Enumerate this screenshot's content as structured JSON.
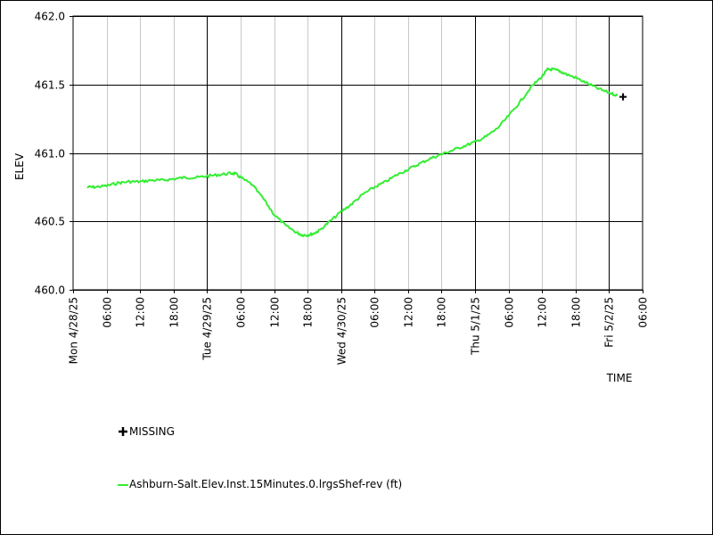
{
  "chart_data": {
    "type": "line",
    "ylabel": "ELEV",
    "xlabel": "TIME",
    "ylim": [
      460.0,
      462.0
    ],
    "y_ticks": [
      "460.0",
      "460.5",
      "461.0",
      "461.5",
      "462.0"
    ],
    "x_range_hours": [
      0,
      102
    ],
    "x_ticks": [
      {
        "hour": 0,
        "label": "Mon 4/28/25",
        "major": true
      },
      {
        "hour": 6,
        "label": "06:00",
        "major": false
      },
      {
        "hour": 12,
        "label": "12:00",
        "major": false
      },
      {
        "hour": 18,
        "label": "18:00",
        "major": false
      },
      {
        "hour": 24,
        "label": "Tue 4/29/25",
        "major": true
      },
      {
        "hour": 30,
        "label": "06:00",
        "major": false
      },
      {
        "hour": 36,
        "label": "12:00",
        "major": false
      },
      {
        "hour": 42,
        "label": "18:00",
        "major": false
      },
      {
        "hour": 48,
        "label": "Wed 4/30/25",
        "major": true
      },
      {
        "hour": 54,
        "label": "06:00",
        "major": false
      },
      {
        "hour": 60,
        "label": "12:00",
        "major": false
      },
      {
        "hour": 66,
        "label": "18:00",
        "major": false
      },
      {
        "hour": 72,
        "label": "Thu 5/1/25",
        "major": true
      },
      {
        "hour": 78,
        "label": "06:00",
        "major": false
      },
      {
        "hour": 84,
        "label": "12:00",
        "major": false
      },
      {
        "hour": 90,
        "label": "18:00",
        "major": false
      },
      {
        "hour": 96,
        "label": "Fri 5/2/25",
        "major": true
      },
      {
        "hour": 102,
        "label": "06:00",
        "major": false
      }
    ],
    "series": [
      {
        "name": "Ashburn-Salt.Elev.Inst.15Minutes.0.lrgsShef-rev (ft)",
        "color": "#33ee33",
        "x_hours": [
          2.5,
          4,
          6,
          8,
          10,
          12,
          14,
          16,
          18,
          20,
          22,
          24,
          26,
          28,
          29,
          30,
          32,
          34,
          36,
          38,
          40,
          41,
          42,
          43,
          44,
          46,
          48,
          50,
          52,
          54,
          56,
          58,
          60,
          62,
          64,
          66,
          68,
          70,
          72,
          74,
          76,
          78,
          80,
          82,
          84,
          85,
          86,
          87,
          88,
          90,
          92,
          94,
          96,
          97.5
        ],
        "y": [
          460.75,
          460.75,
          460.76,
          460.78,
          460.79,
          460.79,
          460.8,
          460.8,
          460.81,
          460.82,
          460.82,
          460.83,
          460.84,
          460.85,
          460.85,
          460.82,
          460.77,
          460.67,
          460.55,
          460.47,
          460.42,
          460.4,
          460.4,
          460.41,
          460.43,
          460.5,
          460.57,
          460.63,
          460.7,
          460.75,
          460.79,
          460.84,
          460.88,
          460.92,
          460.96,
          460.99,
          461.02,
          461.05,
          461.08,
          461.12,
          461.18,
          461.27,
          461.37,
          461.48,
          461.56,
          461.61,
          461.61,
          461.6,
          461.58,
          461.55,
          461.51,
          461.47,
          461.44,
          461.42
        ]
      }
    ],
    "missing_points": {
      "x_hours": [
        98.5
      ],
      "y": [
        461.41
      ]
    }
  },
  "legend": {
    "missing_label": "MISSING",
    "series_label": "Ashburn-Salt.Elev.Inst.15Minutes.0.lrgsShef-rev (ft)"
  }
}
